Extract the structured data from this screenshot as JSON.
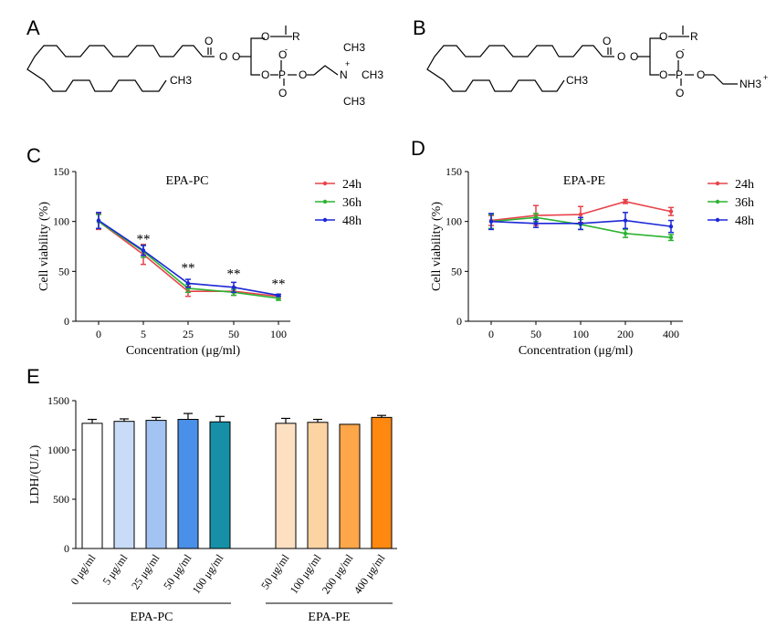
{
  "panels": {
    "a": "A",
    "b": "B",
    "c": "C",
    "d": "D",
    "e": "E"
  },
  "chem_labels": {
    "a": {
      "r": "R",
      "ch3_tail": "CH3",
      "n": "N",
      "n_charge": "+",
      "o_charge": "-",
      "ch3_top": "CH3",
      "ch3_right": "CH3",
      "ch3_bottom": "CH3",
      "p": "P"
    },
    "b": {
      "r": "R",
      "ch3_tail": "CH3",
      "nh3": "NH3",
      "nh3_charge": "+",
      "o_charge": "-",
      "p": "P"
    }
  },
  "chart_data": [
    {
      "id": "C",
      "type": "line",
      "title": "EPA-PC",
      "xlabel": "Concentration (μg/ml)",
      "ylabel": "Cell viability (%)",
      "categories": [
        "0",
        "5",
        "25",
        "50",
        "100"
      ],
      "yticks": [
        "0",
        "50",
        "100",
        "150"
      ],
      "ylim": [
        0,
        150
      ],
      "legend_position": "top-right",
      "series": [
        {
          "name": "24h",
          "color": "#e8434a",
          "values": [
            100,
            67,
            30,
            30,
            25
          ],
          "errors": [
            8,
            10,
            5,
            4,
            2
          ]
        },
        {
          "name": "36h",
          "color": "#2cb332",
          "values": [
            100,
            70,
            33,
            29,
            23
          ],
          "errors": [
            7,
            6,
            4,
            3,
            2
          ]
        },
        {
          "name": "48h",
          "color": "#1c28d6",
          "values": [
            101,
            71,
            38,
            34,
            26
          ],
          "errors": [
            8,
            5,
            4,
            5,
            1
          ]
        }
      ],
      "annotations": [
        {
          "category": "5",
          "text": "**",
          "y": 83
        },
        {
          "category": "25",
          "text": "**",
          "y": 54
        },
        {
          "category": "50",
          "text": "**",
          "y": 48
        },
        {
          "category": "100",
          "text": "**",
          "y": 38
        }
      ]
    },
    {
      "id": "D",
      "type": "line",
      "title": "EPA-PE",
      "xlabel": "Concentration (μg/ml)",
      "ylabel": "Cell viability (%)",
      "categories": [
        "0",
        "50",
        "100",
        "200",
        "400"
      ],
      "yticks": [
        "0",
        "50",
        "100",
        "150"
      ],
      "ylim": [
        0,
        150
      ],
      "legend_position": "top-right",
      "series": [
        {
          "name": "24h",
          "color": "#e8434a",
          "values": [
            101,
            106,
            107,
            120,
            110
          ],
          "errors": [
            5,
            10,
            8,
            2,
            4
          ]
        },
        {
          "name": "36h",
          "color": "#2cb332",
          "values": [
            100,
            104,
            97,
            88,
            84
          ],
          "errors": [
            7,
            4,
            5,
            4,
            3
          ]
        },
        {
          "name": "48h",
          "color": "#1c28d6",
          "values": [
            100,
            98,
            98,
            101,
            95
          ],
          "errors": [
            8,
            4,
            6,
            8,
            6
          ]
        }
      ]
    },
    {
      "id": "E",
      "type": "bar",
      "xlabel": "",
      "ylabel": "LDH/(U/L)",
      "ylim": [
        0,
        1500
      ],
      "yticks": [
        "0",
        "500",
        "1000",
        "1500"
      ],
      "categories": [
        "0 μg/ml",
        "5 μg/ml",
        "25 μg/ml",
        "50 μg/ml",
        "100 μg/ml",
        "50 μg/ml",
        "100 μg/ml",
        "200 μg/ml",
        "400 μg/ml"
      ],
      "values": [
        1270,
        1290,
        1300,
        1310,
        1285,
        1270,
        1280,
        1260,
        1330
      ],
      "errors": [
        40,
        25,
        30,
        60,
        55,
        50,
        30,
        0,
        20
      ],
      "colors": [
        "#ffffff",
        "#c9dcf7",
        "#a3c4f2",
        "#4a8fe8",
        "#178fa6",
        "#fde0c2",
        "#fcd3a3",
        "#fda64a",
        "#ff8811"
      ],
      "groups": [
        {
          "label": "EPA-PC",
          "from": 0,
          "to": 4
        },
        {
          "label": "EPA-PE",
          "from": 5,
          "to": 8
        }
      ]
    }
  ]
}
